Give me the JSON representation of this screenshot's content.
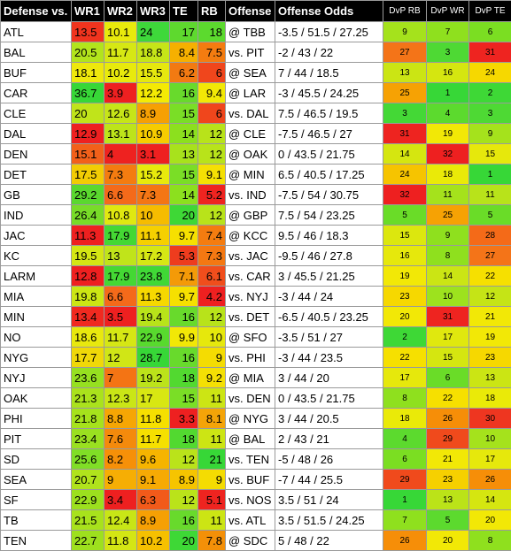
{
  "headers": {
    "defense": "Defense vs.",
    "wr1": "WR1",
    "wr2": "WR2",
    "wr3": "WR3",
    "te": "TE",
    "rb": "RB",
    "offense": "Offense",
    "odds": "Offense Odds",
    "dvp_rb": "DvP RB",
    "dvp_wr": "DvP WR",
    "dvp_te": "DvP TE"
  },
  "colors": {
    "dark_green": "#37d737",
    "green": "#8ce01e",
    "yellow_green": "#c8e614",
    "yellow": "#f2f200",
    "orange": "#f7a800",
    "orange_red": "#f46a1e",
    "red": "#ee2020",
    "header_bg": "#000000",
    "header_text": "#ffffff"
  },
  "rows": [
    {
      "team": "ATL",
      "wr1": "13.5",
      "wr1_c": "#f0341e",
      "wr2": "10.1",
      "wr2_c": "#e8ea0c",
      "wr3": "24",
      "wr3_c": "#3ed83a",
      "te": "17",
      "te_c": "#5ed92e",
      "rb": "18",
      "rb_c": "#5cda2e",
      "opp": "@ TBB",
      "odds": "-3.5 / 51.5 / 27.25",
      "dvp_rb": "9",
      "dvp_rb_c": "#a5e21c",
      "dvp_wr": "7",
      "dvp_wr_c": "#8fe01e",
      "dvp_te": "6",
      "dvp_te_c": "#7bde22"
    },
    {
      "team": "BAL",
      "wr1": "20.5",
      "wr1_c": "#b2e41c",
      "wr2": "11.7",
      "wr2_c": "#d6e714",
      "wr3": "18.8",
      "wr3_c": "#c6e518",
      "te": "8.4",
      "te_c": "#f6b000",
      "rb": "7.5",
      "rb_c": "#f47c10",
      "opp": "vs. PIT",
      "odds": "-2 / 43 / 22",
      "dvp_rb": "27",
      "dvp_rb_c": "#f47418",
      "dvp_wr": "3",
      "dvp_wr_c": "#4ed934",
      "dvp_te": "31",
      "dvp_te_c": "#ee2420"
    },
    {
      "team": "BUF",
      "wr1": "18.1",
      "wr1_c": "#eee80c",
      "wr2": "10.2",
      "wr2_c": "#e8ea0c",
      "wr3": "15.5",
      "wr3_c": "#e6e80e",
      "te": "6.2",
      "te_c": "#f27a12",
      "rb": "6",
      "rb_c": "#f0461c",
      "opp": "@ SEA",
      "odds": "7 / 44 / 18.5",
      "dvp_rb": "13",
      "dvp_rb_c": "#cbe514",
      "dvp_wr": "16",
      "dvp_wr_c": "#d5e610",
      "dvp_te": "24",
      "dvp_te_c": "#f6d800"
    },
    {
      "team": "CAR",
      "wr1": "36.7",
      "wr1_c": "#37d737",
      "wr2": "3.9",
      "wr2_c": "#ee2020",
      "wr3": "12.2",
      "wr3_c": "#f4ea04",
      "te": "16",
      "te_c": "#68da2c",
      "rb": "9.4",
      "rb_c": "#f2e806",
      "opp": "@ LAR",
      "odds": "-3 / 45.5 / 24.25",
      "dvp_rb": "25",
      "dvp_rb_c": "#f6a204",
      "dvp_wr": "1",
      "dvp_wr_c": "#37d737",
      "dvp_te": "2",
      "dvp_te_c": "#3ed836"
    },
    {
      "team": "CLE",
      "wr1": "20",
      "wr1_c": "#c0e41a",
      "wr2": "12.6",
      "wr2_c": "#c6e518",
      "wr3": "8.9",
      "wr3_c": "#f6a004",
      "te": "15",
      "te_c": "#7ade26",
      "rb": "6",
      "rb_c": "#f0461c",
      "opp": "vs. DAL",
      "odds": "7.5 / 46.5 / 19.5",
      "dvp_rb": "3",
      "dvp_rb_c": "#44d836",
      "dvp_wr": "4",
      "dvp_wr_c": "#5cda2e",
      "dvp_te": "3",
      "dvp_te_c": "#4ed934"
    },
    {
      "team": "DAL",
      "wr1": "12.9",
      "wr1_c": "#ee2020",
      "wr2": "13.1",
      "wr2_c": "#bde41a",
      "wr3": "10.9",
      "wr3_c": "#f6cc00",
      "te": "14",
      "te_c": "#8ce01e",
      "rb": "12",
      "rb_c": "#b8e31a",
      "opp": "@ CLE",
      "odds": "-7.5 / 46.5 / 27",
      "dvp_rb": "31",
      "dvp_rb_c": "#ee2420",
      "dvp_wr": "19",
      "dvp_wr_c": "#f2e806",
      "dvp_te": "9",
      "dvp_te_c": "#a5e21c"
    },
    {
      "team": "DEN",
      "wr1": "15.1",
      "wr1_c": "#f2601a",
      "wr2": "4",
      "wr2_c": "#ee2220",
      "wr3": "3.1",
      "wr3_c": "#ee2020",
      "te": "13",
      "te_c": "#a8e21c",
      "rb": "12",
      "rb_c": "#b8e31a",
      "opp": "@ OAK",
      "odds": "0 / 43.5 / 21.75",
      "dvp_rb": "14",
      "dvp_rb_c": "#d5e610",
      "dvp_wr": "32",
      "dvp_wr_c": "#ee2020",
      "dvp_te": "15",
      "dvp_te_c": "#e6e80c"
    },
    {
      "team": "DET",
      "wr1": "17.5",
      "wr1_c": "#f2cc04",
      "wr2": "7.3",
      "wr2_c": "#f47c10",
      "wr3": "15.2",
      "wr3_c": "#e8ea0c",
      "te": "15",
      "te_c": "#7ade26",
      "rb": "9.1",
      "rb_c": "#f4e004",
      "opp": "@ MIN",
      "odds": "6.5 / 40.5 / 17.25",
      "dvp_rb": "24",
      "dvp_rb_c": "#f6c400",
      "dvp_wr": "18",
      "dvp_wr_c": "#eaea08",
      "dvp_te": "1",
      "dvp_te_c": "#37d737"
    },
    {
      "team": "GB",
      "wr1": "29.2",
      "wr1_c": "#5ad82e",
      "wr2": "6.6",
      "wr2_c": "#f46a1a",
      "wr3": "7.3",
      "wr3_c": "#f47614",
      "te": "14",
      "te_c": "#8ce01e",
      "rb": "5.2",
      "rb_c": "#ee2420",
      "opp": "vs. IND",
      "odds": "-7.5 / 54 / 30.75",
      "dvp_rb": "32",
      "dvp_rb_c": "#ee2020",
      "dvp_wr": "11",
      "dvp_wr_c": "#a5e21c",
      "dvp_te": "11",
      "dvp_te_c": "#b8e31a"
    },
    {
      "team": "IND",
      "wr1": "26.4",
      "wr1_c": "#78dc28",
      "wr2": "10.8",
      "wr2_c": "#e0e810",
      "wr3": "10",
      "wr3_c": "#f6bc00",
      "te": "20",
      "te_c": "#3ed836",
      "rb": "12",
      "rb_c": "#b8e31a",
      "opp": "@ GBP",
      "odds": "7.5 / 54 / 23.25",
      "dvp_rb": "5",
      "dvp_rb_c": "#6adc28",
      "dvp_wr": "25",
      "dvp_wr_c": "#f6a204",
      "dvp_te": "5",
      "dvp_te_c": "#6adc28"
    },
    {
      "team": "JAC",
      "wr1": "11.3",
      "wr1_c": "#ee2020",
      "wr2": "17.9",
      "wr2_c": "#44d834",
      "wr3": "11.1",
      "wr3_c": "#f6d000",
      "te": "9.7",
      "te_c": "#f6e000",
      "rb": "7.4",
      "rb_c": "#f47c10",
      "opp": "@ KCC",
      "odds": "9.5 / 46 / 18.3",
      "dvp_rb": "15",
      "dvp_rb_c": "#dce70e",
      "dvp_wr": "9",
      "dvp_wr_c": "#8fe01e",
      "dvp_te": "28",
      "dvp_te_c": "#f46a18"
    },
    {
      "team": "KC",
      "wr1": "19.5",
      "wr1_c": "#d4e614",
      "wr2": "13",
      "wr2_c": "#c0e41a",
      "wr3": "17.2",
      "wr3_c": "#d6e714",
      "te": "5.3",
      "te_c": "#ee3c1e",
      "rb": "7.3",
      "rb_c": "#f47812",
      "opp": "vs. JAC",
      "odds": "-9.5 / 46 / 27.8",
      "dvp_rb": "16",
      "dvp_rb_c": "#e6e80c",
      "dvp_wr": "8",
      "dvp_wr_c": "#8fe01e",
      "dvp_te": "27",
      "dvp_te_c": "#f47418"
    },
    {
      "team": "LARM",
      "wr1": "12.8",
      "wr1_c": "#ee2020",
      "wr2": "17.9",
      "wr2_c": "#44d834",
      "wr3": "23.8",
      "wr3_c": "#40d836",
      "te": "7.1",
      "te_c": "#f49a08",
      "rb": "6.1",
      "rb_c": "#f04e1c",
      "opp": "vs. CAR",
      "odds": "3 / 45.5 / 21.25",
      "dvp_rb": "19",
      "dvp_rb_c": "#f2e806",
      "dvp_wr": "14",
      "dvp_wr_c": "#cbe514",
      "dvp_te": "22",
      "dvp_te_c": "#f6e000"
    },
    {
      "team": "MIA",
      "wr1": "19.8",
      "wr1_c": "#cce614",
      "wr2": "6.6",
      "wr2_c": "#f46a1a",
      "wr3": "11.3",
      "wr3_c": "#f6d800",
      "te": "9.7",
      "te_c": "#f6e000",
      "rb": "4.2",
      "rb_c": "#ee2020",
      "opp": "vs. NYJ",
      "odds": "-3 / 44 / 24",
      "dvp_rb": "23",
      "dvp_rb_c": "#f6d800",
      "dvp_wr": "10",
      "dvp_wr_c": "#9de21e",
      "dvp_te": "12",
      "dvp_te_c": "#c5e416"
    },
    {
      "team": "MIN",
      "wr1": "13.4",
      "wr1_c": "#f02a20",
      "wr2": "3.5",
      "wr2_c": "#ee2020",
      "wr3": "19.4",
      "wr3_c": "#b8e31a",
      "te": "16",
      "te_c": "#68da2c",
      "rb": "12",
      "rb_c": "#b8e31a",
      "opp": "vs. DET",
      "odds": "-6.5 / 40.5 / 23.25",
      "dvp_rb": "20",
      "dvp_rb_c": "#f2e806",
      "dvp_wr": "31",
      "dvp_wr_c": "#ee2420",
      "dvp_te": "21",
      "dvp_te_c": "#f2e806"
    },
    {
      "team": "NO",
      "wr1": "18.6",
      "wr1_c": "#e8e80e",
      "wr2": "11.7",
      "wr2_c": "#d6e714",
      "wr3": "22.9",
      "wr3_c": "#58da2e",
      "te": "9.9",
      "te_c": "#f2e806",
      "rb": "10",
      "rb_c": "#e6e80c",
      "opp": "@ SFO",
      "odds": "-3.5 / 51 / 27",
      "dvp_rb": "2",
      "dvp_rb_c": "#3ed836",
      "dvp_wr": "17",
      "dvp_wr_c": "#e0e80e",
      "dvp_te": "19",
      "dvp_te_c": "#f2e806"
    },
    {
      "team": "NYG",
      "wr1": "17.7",
      "wr1_c": "#f0d808",
      "wr2": "12",
      "wr2_c": "#d0e616",
      "wr3": "28.7",
      "wr3_c": "#37d737",
      "te": "16",
      "te_c": "#68da2c",
      "rb": "9",
      "rb_c": "#f4dc02",
      "opp": "vs. PHI",
      "odds": "-3 / 44 / 23.5",
      "dvp_rb": "22",
      "dvp_rb_c": "#f6e000",
      "dvp_wr": "15",
      "dvp_wr_c": "#d5e610",
      "dvp_te": "23",
      "dvp_te_c": "#f6d800"
    },
    {
      "team": "NYJ",
      "wr1": "23.6",
      "wr1_c": "#96e020",
      "wr2": "7",
      "wr2_c": "#f47414",
      "wr3": "19.2",
      "wr3_c": "#bce31a",
      "te": "18",
      "te_c": "#52d930",
      "rb": "9.2",
      "rb_c": "#f4e004",
      "opp": "@ MIA",
      "odds": "3 / 44 / 20",
      "dvp_rb": "17",
      "dvp_rb_c": "#e6e80c",
      "dvp_wr": "6",
      "dvp_wr_c": "#6adc28",
      "dvp_te": "13",
      "dvp_te_c": "#cbe514"
    },
    {
      "team": "OAK",
      "wr1": "21.3",
      "wr1_c": "#aae21c",
      "wr2": "12.3",
      "wr2_c": "#cae616",
      "wr3": "17",
      "wr3_c": "#d8e712",
      "te": "15",
      "te_c": "#7ade26",
      "rb": "11",
      "rb_c": "#cce514",
      "opp": "vs. DEN",
      "odds": "0 / 43.5 / 21.75",
      "dvp_rb": "8",
      "dvp_rb_c": "#8fe01e",
      "dvp_wr": "22",
      "dvp_wr_c": "#f6e000",
      "dvp_te": "18",
      "dvp_te_c": "#eaea08"
    },
    {
      "team": "PHI",
      "wr1": "21.8",
      "wr1_c": "#a6e21c",
      "wr2": "8.8",
      "wr2_c": "#f6a604",
      "wr3": "11.8",
      "wr3_c": "#f6e000",
      "te": "3.3",
      "te_c": "#ee2020",
      "rb": "8.1",
      "rb_c": "#f4a408",
      "opp": "@ NYG",
      "odds": "3 / 44 / 20.5",
      "dvp_rb": "18",
      "dvp_rb_c": "#eaea08",
      "dvp_wr": "26",
      "dvp_wr_c": "#f68e08",
      "dvp_te": "30",
      "dvp_te_c": "#ee3620"
    },
    {
      "team": "PIT",
      "wr1": "23.4",
      "wr1_c": "#9ae020",
      "wr2": "7.6",
      "wr2_c": "#f48a0c",
      "wr3": "11.7",
      "wr3_c": "#f6e000",
      "te": "18",
      "te_c": "#52d930",
      "rb": "11",
      "rb_c": "#cce514",
      "opp": "@ BAL",
      "odds": "2 / 43 / 21",
      "dvp_rb": "4",
      "dvp_rb_c": "#5cda2e",
      "dvp_wr": "29",
      "dvp_wr_c": "#f04a1c",
      "dvp_te": "10",
      "dvp_te_c": "#a5e21c"
    },
    {
      "team": "SD",
      "wr1": "25.6",
      "wr1_c": "#80de26",
      "wr2": "8.2",
      "wr2_c": "#f69008",
      "wr3": "9.6",
      "wr3_c": "#f6b400",
      "te": "12",
      "te_c": "#bae31a",
      "rb": "21",
      "rb_c": "#37d737",
      "opp": "vs. TEN",
      "odds": "-5 / 48 / 26",
      "dvp_rb": "6",
      "dvp_rb_c": "#7bde22",
      "dvp_wr": "21",
      "dvp_wr_c": "#f2e806",
      "dvp_te": "17",
      "dvp_te_c": "#e6e80c"
    },
    {
      "team": "SEA",
      "wr1": "20.7",
      "wr1_c": "#b0e31c",
      "wr2": "9",
      "wr2_c": "#f6ae04",
      "wr3": "9.1",
      "wr3_c": "#f6aa04",
      "te": "8.9",
      "te_c": "#f6c400",
      "rb": "9",
      "rb_c": "#f4dc02",
      "opp": "vs. BUF",
      "odds": "-7 / 44 / 25.5",
      "dvp_rb": "29",
      "dvp_rb_c": "#f04a1c",
      "dvp_wr": "23",
      "dvp_wr_c": "#f6d000",
      "dvp_te": "26",
      "dvp_te_c": "#f68e08"
    },
    {
      "team": "SF",
      "wr1": "22.9",
      "wr1_c": "#9ce01e",
      "wr2": "3.4",
      "wr2_c": "#ee2020",
      "wr3": "6.3",
      "wr3_c": "#f25a1a",
      "te": "12",
      "te_c": "#bae31a",
      "rb": "5.1",
      "rb_c": "#ee2420",
      "opp": "vs. NOS",
      "odds": "3.5 / 51 / 24",
      "dvp_rb": "1",
      "dvp_rb_c": "#37d737",
      "dvp_wr": "13",
      "dvp_wr_c": "#bbe318",
      "dvp_te": "14",
      "dvp_te_c": "#d5e610"
    },
    {
      "team": "TB",
      "wr1": "21.5",
      "wr1_c": "#a8e21c",
      "wr2": "12.4",
      "wr2_c": "#c8e616",
      "wr3": "8.9",
      "wr3_c": "#f6a004",
      "te": "16",
      "te_c": "#68da2c",
      "rb": "11",
      "rb_c": "#cce514",
      "opp": "vs. ATL",
      "odds": "3.5 / 51.5 / 24.25",
      "dvp_rb": "7",
      "dvp_rb_c": "#8fe01e",
      "dvp_wr": "5",
      "dvp_wr_c": "#5cda2e",
      "dvp_te": "20",
      "dvp_te_c": "#f2e806"
    },
    {
      "team": "TEN",
      "wr1": "22.7",
      "wr1_c": "#9ee01e",
      "wr2": "11.8",
      "wr2_c": "#d4e614",
      "wr3": "10.2",
      "wr3_c": "#f6c000",
      "te": "20",
      "te_c": "#3ed836",
      "rb": "7.8",
      "rb_c": "#f49008",
      "opp": "@ SDC",
      "odds": "5 / 48 / 22",
      "dvp_rb": "26",
      "dvp_rb_c": "#f68e08",
      "dvp_wr": "20",
      "dvp_wr_c": "#f2e806",
      "dvp_te": "8",
      "dvp_te_c": "#8fe01e"
    }
  ]
}
